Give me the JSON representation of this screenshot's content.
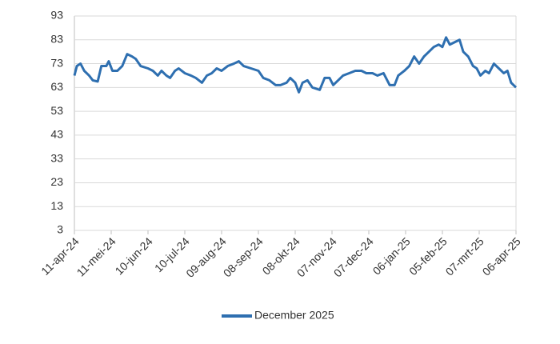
{
  "chart_data": {
    "type": "line",
    "x": [
      "2024-04-11",
      "2024-04-13",
      "2024-04-16",
      "2024-04-19",
      "2024-04-23",
      "2024-04-26",
      "2024-04-30",
      "2024-05-03",
      "2024-05-07",
      "2024-05-09",
      "2024-05-12",
      "2024-05-16",
      "2024-05-20",
      "2024-05-24",
      "2024-05-28",
      "2024-05-31",
      "2024-06-04",
      "2024-06-10",
      "2024-06-14",
      "2024-06-18",
      "2024-06-21",
      "2024-06-25",
      "2024-06-28",
      "2024-07-02",
      "2024-07-05",
      "2024-07-10",
      "2024-07-15",
      "2024-07-19",
      "2024-07-24",
      "2024-07-28",
      "2024-08-01",
      "2024-08-05",
      "2024-08-09",
      "2024-08-14",
      "2024-08-19",
      "2024-08-23",
      "2024-08-27",
      "2024-09-02",
      "2024-09-08",
      "2024-09-12",
      "2024-09-17",
      "2024-09-22",
      "2024-09-26",
      "2024-10-01",
      "2024-10-04",
      "2024-10-08",
      "2024-10-11",
      "2024-10-14",
      "2024-10-18",
      "2024-10-22",
      "2024-10-28",
      "2024-11-01",
      "2024-11-05",
      "2024-11-08",
      "2024-11-12",
      "2024-11-16",
      "2024-11-21",
      "2024-11-26",
      "2024-12-01",
      "2024-12-05",
      "2024-12-10",
      "2024-12-14",
      "2024-12-19",
      "2024-12-24",
      "2024-12-28",
      "2024-12-31",
      "2025-01-05",
      "2025-01-09",
      "2025-01-13",
      "2025-01-17",
      "2025-01-21",
      "2025-01-25",
      "2025-01-29",
      "2025-02-02",
      "2025-02-05",
      "2025-02-08",
      "2025-02-11",
      "2025-02-15",
      "2025-02-19",
      "2025-02-22",
      "2025-02-26",
      "2025-03-02",
      "2025-03-05",
      "2025-03-08",
      "2025-03-12",
      "2025-03-15",
      "2025-03-19",
      "2025-03-23",
      "2025-03-27",
      "2025-03-30",
      "2025-04-02",
      "2025-04-06"
    ],
    "series": [
      {
        "name": "December 2025",
        "color": "#2e6fb0",
        "values": [
          68,
          72,
          73,
          70,
          68,
          66,
          65.5,
          72,
          72,
          74,
          70,
          70,
          72,
          77,
          76,
          75,
          72,
          71,
          70,
          68,
          70,
          68,
          67,
          70,
          71,
          69,
          68,
          67,
          65,
          68,
          69,
          71,
          70,
          72,
          73,
          74,
          72,
          71,
          70,
          67,
          66,
          64,
          64,
          65,
          67,
          65,
          61,
          65,
          66,
          63,
          62,
          67,
          67,
          64,
          66,
          68,
          69,
          70,
          70,
          69,
          69,
          68,
          69,
          64,
          64,
          68,
          70,
          72,
          76,
          73,
          76,
          78,
          80,
          81,
          80,
          84,
          81,
          82,
          83,
          78,
          76,
          72,
          71,
          68,
          70,
          69,
          73,
          71,
          69,
          70,
          65,
          63
        ]
      }
    ],
    "xlim": [
      "2024-04-11",
      "2025-04-06"
    ],
    "xticks": [
      {
        "value": "2024-04-11",
        "label": "11-apr-24"
      },
      {
        "value": "2024-05-11",
        "label": "11-mei-24"
      },
      {
        "value": "2024-06-10",
        "label": "10-jun-24"
      },
      {
        "value": "2024-07-10",
        "label": "10-jul-24"
      },
      {
        "value": "2024-08-09",
        "label": "09-aug-24"
      },
      {
        "value": "2024-09-08",
        "label": "08-sep-24"
      },
      {
        "value": "2024-10-08",
        "label": "08-okt-24"
      },
      {
        "value": "2024-11-07",
        "label": "07-nov-24"
      },
      {
        "value": "2024-12-07",
        "label": "07-dec-24"
      },
      {
        "value": "2025-01-06",
        "label": "06-jan-25"
      },
      {
        "value": "2025-02-05",
        "label": "05-feb-25"
      },
      {
        "value": "2025-03-07",
        "label": "07-mrt-25"
      },
      {
        "value": "2025-04-06",
        "label": "06-apr-25"
      }
    ],
    "ylim": [
      3,
      93
    ],
    "yticks": [
      3,
      13,
      23,
      33,
      43,
      53,
      63,
      73,
      83,
      93
    ],
    "grid": true,
    "legend": "bottom"
  }
}
